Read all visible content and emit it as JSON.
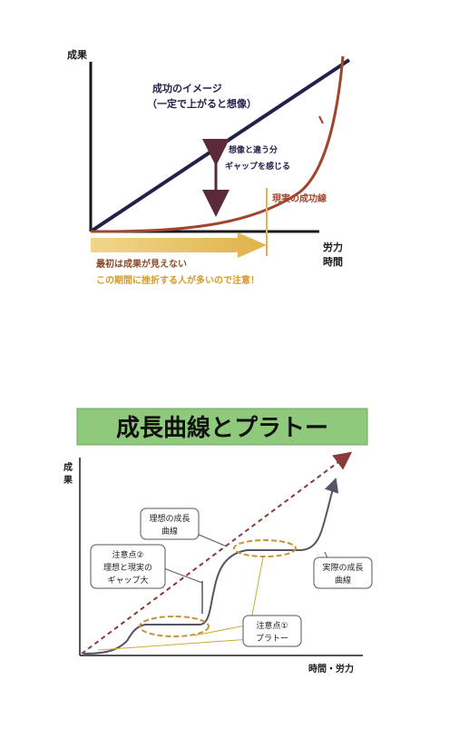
{
  "diagram1": {
    "y_axis_label": "成果",
    "x_axis_label_line1": "労力",
    "x_axis_label_line2": "時間",
    "ideal_label_line1": "成功のイメージ",
    "ideal_label_line2": "（一定で上がると想像）",
    "gap_label_line1": "想像と違う分",
    "gap_label_line2": "ギャップを感じる",
    "reality_label": "現実の成功線",
    "note_line1": "最初は成果が見えない",
    "note_line2": "この期間に挫折する人が多いので注意！",
    "colors": {
      "axis": "#1a1a1a",
      "ideal_line": "#23204a",
      "reality_curve": "#a0452e",
      "gap_arrow": "#5a2a3a",
      "arrow_band": "#e6c16a",
      "note_line1": "#8b4a2b",
      "note_line2": "#d49a2a",
      "reality_marker": "#e6b34a"
    }
  },
  "diagram2": {
    "title": "成長曲線とプラトー",
    "y_axis_label": "成果",
    "x_axis_label": "時間・労力",
    "ideal_callout_line1": "理想の成長",
    "ideal_callout_line2": "曲線",
    "caution2_line1": "注意点②",
    "caution2_line2": "理想と現実の",
    "caution2_line3": "ギャップ大",
    "actual_callout_line1": "実際の成長",
    "actual_callout_line2": "曲線",
    "caution1_line1": "注意点①",
    "caution1_line2": "プラトー",
    "colors": {
      "title_bg": "#8fca7c",
      "title_border": "#6aa85a",
      "ideal_dashed": "#8a3a3a",
      "actual_curve": "#555566",
      "plateau_ellipse": "#c8923a",
      "callout_line": "#d4a83a"
    }
  }
}
